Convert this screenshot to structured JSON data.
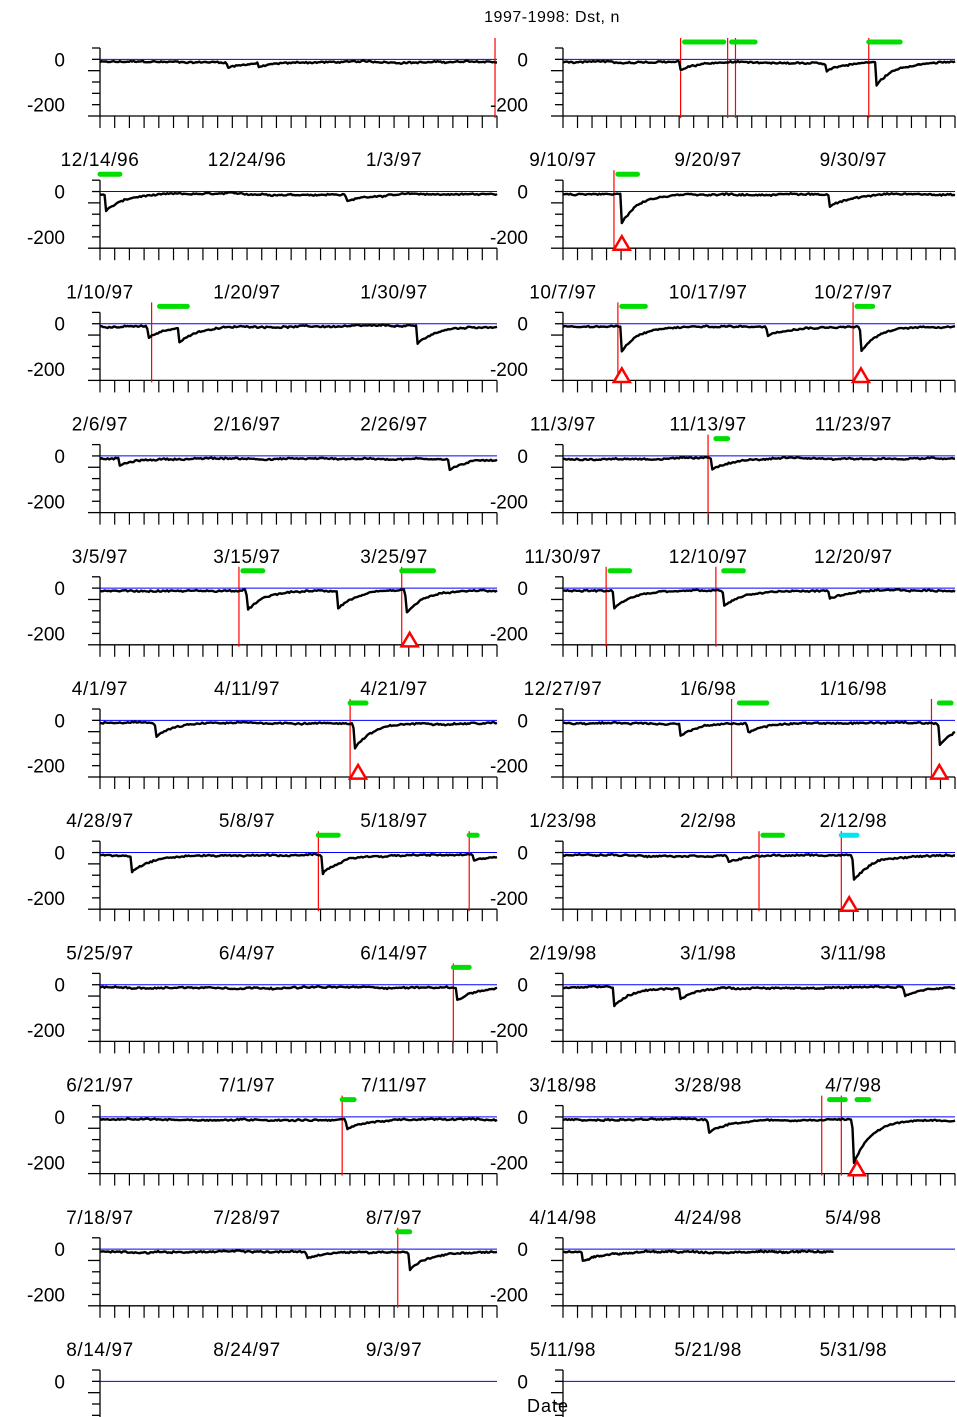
{
  "chart_data": {
    "type": "line",
    "title": "1997-1998: Dst, n",
    "xlabel": "Date",
    "ylabel": "",
    "ylim": [
      -250,
      50
    ],
    "y_ticks": [
      "0",
      "-200"
    ],
    "colors": {
      "dst_line": "#000000",
      "zero_line": "#0000ff",
      "event_marker": "#ff0000",
      "interval_bar": "#00dd00",
      "interval_bar_alt": "#00e5ee",
      "triangle": "#ff0000"
    },
    "panels": [
      {
        "column": "left",
        "row": 0,
        "date_labels": [],
        "dst_min": -25,
        "dips": [
          {
            "pos": 0.32,
            "depth": -25
          },
          {
            "pos": 0.4,
            "depth": -18
          }
        ],
        "red_lines": [
          0.995
        ],
        "green_bars": [],
        "cyan_bars": [],
        "triangles": []
      },
      {
        "column": "left",
        "row": 1,
        "date_labels": [
          "12/14/96",
          "12/24/96",
          "1/3/97"
        ],
        "dst_min": -75,
        "dips": [
          {
            "pos": 0.015,
            "depth": -75
          },
          {
            "pos": 0.62,
            "depth": -35
          }
        ],
        "red_lines": [],
        "green_bars": [
          [
            0.0,
            0.05
          ]
        ],
        "cyan_bars": [],
        "triangles": []
      },
      {
        "column": "left",
        "row": 2,
        "date_labels": [
          "1/10/97",
          "1/20/97",
          "1/30/97"
        ],
        "dst_min": -80,
        "dips": [
          {
            "pos": 0.12,
            "depth": -55
          },
          {
            "pos": 0.2,
            "depth": -60
          },
          {
            "pos": 0.8,
            "depth": -80
          }
        ],
        "red_lines": [
          0.13
        ],
        "green_bars": [
          [
            0.15,
            0.22
          ]
        ],
        "cyan_bars": [],
        "triangles": []
      },
      {
        "column": "left",
        "row": 3,
        "date_labels": [
          "2/6/97",
          "2/16/97",
          "2/26/97"
        ],
        "dst_min": -50,
        "dips": [
          {
            "pos": 0.05,
            "depth": -30
          },
          {
            "pos": 0.88,
            "depth": -50
          }
        ],
        "red_lines": [],
        "green_bars": [],
        "cyan_bars": [],
        "triangles": []
      },
      {
        "column": "left",
        "row": 4,
        "date_labels": [
          "3/5/97",
          "3/15/97",
          "3/25/97"
        ],
        "dst_min": -105,
        "dips": [
          {
            "pos": 0.37,
            "depth": -90
          },
          {
            "pos": 0.6,
            "depth": -75
          },
          {
            "pos": 0.77,
            "depth": -105
          }
        ],
        "red_lines": [
          0.35,
          0.76
        ],
        "green_bars": [
          [
            0.36,
            0.41
          ],
          [
            0.76,
            0.84
          ]
        ],
        "cyan_bars": [],
        "triangles": [
          0.78
        ]
      },
      {
        "column": "left",
        "row": 5,
        "date_labels": [
          "4/1/97",
          "4/11/97",
          "4/21/97"
        ],
        "dst_min": -115,
        "dips": [
          {
            "pos": 0.14,
            "depth": -60
          },
          {
            "pos": 0.64,
            "depth": -115
          }
        ],
        "red_lines": [
          0.63
        ],
        "green_bars": [
          [
            0.63,
            0.67
          ]
        ],
        "cyan_bars": [],
        "triangles": [
          0.65
        ]
      },
      {
        "column": "left",
        "row": 6,
        "date_labels": [
          "4/28/97",
          "5/8/97",
          "5/18/97"
        ],
        "dst_min": -85,
        "dips": [
          {
            "pos": 0.08,
            "depth": -70
          },
          {
            "pos": 0.56,
            "depth": -85
          },
          {
            "pos": 0.94,
            "depth": -30
          }
        ],
        "red_lines": [
          0.55,
          0.93
        ],
        "green_bars": [
          [
            0.55,
            0.6
          ],
          [
            0.93,
            0.95
          ]
        ],
        "cyan_bars": [],
        "triangles": []
      },
      {
        "column": "left",
        "row": 7,
        "date_labels": [
          "5/25/97",
          "6/4/97",
          "6/14/97"
        ],
        "dst_min": -55,
        "dips": [
          {
            "pos": 0.9,
            "depth": -55
          }
        ],
        "red_lines": [
          0.89
        ],
        "green_bars": [
          [
            0.89,
            0.93
          ]
        ],
        "cyan_bars": [],
        "triangles": []
      },
      {
        "column": "left",
        "row": 8,
        "date_labels": [
          "6/21/97",
          "7/1/97",
          "7/11/97"
        ],
        "dst_min": -45,
        "dips": [
          {
            "pos": 0.62,
            "depth": -45
          }
        ],
        "red_lines": [
          0.61
        ],
        "green_bars": [
          [
            0.61,
            0.64
          ]
        ],
        "cyan_bars": [],
        "triangles": []
      },
      {
        "column": "left",
        "row": 9,
        "date_labels": [
          "7/18/97",
          "7/28/97",
          "8/7/97"
        ],
        "dst_min": -80,
        "dips": [
          {
            "pos": 0.52,
            "depth": -30
          },
          {
            "pos": 0.78,
            "depth": -80
          }
        ],
        "red_lines": [
          0.75
        ],
        "green_bars": [
          [
            0.75,
            0.78
          ]
        ],
        "cyan_bars": [],
        "triangles": []
      },
      {
        "column": "left",
        "row": 10,
        "date_labels": [
          "8/14/97",
          "8/24/97",
          "9/3/97"
        ],
        "dst_min": null,
        "dips": [],
        "red_lines": [],
        "green_bars": [],
        "cyan_bars": [],
        "triangles": []
      },
      {
        "column": "right",
        "row": 0,
        "date_labels": [],
        "dst_min": -100,
        "dips": [
          {
            "pos": 0.3,
            "depth": -40
          },
          {
            "pos": 0.67,
            "depth": -35
          },
          {
            "pos": 0.8,
            "depth": -100
          }
        ],
        "red_lines": [
          0.3,
          0.42,
          0.44,
          0.78
        ],
        "green_bars": [
          [
            0.31,
            0.41
          ],
          [
            0.43,
            0.49
          ],
          [
            0.78,
            0.86
          ]
        ],
        "cyan_bars": [],
        "triangles": []
      },
      {
        "column": "right",
        "row": 1,
        "date_labels": [
          "9/10/97",
          "9/20/97",
          "9/30/97"
        ],
        "dst_min": -130,
        "dips": [
          {
            "pos": 0.15,
            "depth": -130
          },
          {
            "pos": 0.68,
            "depth": -55
          }
        ],
        "red_lines": [
          0.13
        ],
        "green_bars": [
          [
            0.14,
            0.19
          ]
        ],
        "cyan_bars": [],
        "triangles": [
          0.15
        ]
      },
      {
        "column": "right",
        "row": 2,
        "date_labels": [
          "10/7/97",
          "10/17/97",
          "10/27/97"
        ],
        "dst_min": -110,
        "dips": [
          {
            "pos": 0.15,
            "depth": -110
          },
          {
            "pos": 0.52,
            "depth": -40
          },
          {
            "pos": 0.76,
            "depth": -110
          }
        ],
        "red_lines": [
          0.14,
          0.74
        ],
        "green_bars": [
          [
            0.15,
            0.21
          ],
          [
            0.75,
            0.79
          ]
        ],
        "cyan_bars": [],
        "triangles": [
          0.15,
          0.76
        ]
      },
      {
        "column": "right",
        "row": 3,
        "date_labels": [
          "11/3/97",
          "11/13/97",
          "11/23/97"
        ],
        "dst_min": -50,
        "dips": [
          {
            "pos": 0.38,
            "depth": -50
          }
        ],
        "red_lines": [
          0.37
        ],
        "green_bars": [
          [
            0.39,
            0.42
          ]
        ],
        "cyan_bars": [],
        "triangles": []
      },
      {
        "column": "right",
        "row": 4,
        "date_labels": [
          "11/30/97",
          "12/10/97",
          "12/20/97"
        ],
        "dst_min": -80,
        "dips": [
          {
            "pos": 0.13,
            "depth": -80
          },
          {
            "pos": 0.41,
            "depth": -70
          },
          {
            "pos": 0.68,
            "depth": -35
          }
        ],
        "red_lines": [
          0.11,
          0.39
        ],
        "green_bars": [
          [
            0.12,
            0.17
          ],
          [
            0.41,
            0.46
          ]
        ],
        "cyan_bars": [],
        "triangles": []
      },
      {
        "column": "right",
        "row": 5,
        "date_labels": [
          "12/27/97",
          "1/6/98",
          "1/16/98"
        ],
        "dst_min": -95,
        "dips": [
          {
            "pos": 0.3,
            "depth": -55
          },
          {
            "pos": 0.47,
            "depth": -40
          },
          {
            "pos": 0.96,
            "depth": -95
          }
        ],
        "red_lines": [
          0.43,
          0.94
        ],
        "green_bars": [
          [
            0.45,
            0.52
          ],
          [
            0.96,
            0.99
          ]
        ],
        "cyan_bars": [],
        "triangles": [
          0.96
        ]
      },
      {
        "column": "right",
        "row": 6,
        "date_labels": [
          "1/23/98",
          "2/2/98",
          "2/12/98"
        ],
        "dst_min": -115,
        "dips": [
          {
            "pos": 0.42,
            "depth": -30
          },
          {
            "pos": 0.74,
            "depth": -115
          }
        ],
        "red_lines": [
          0.5,
          0.71
        ],
        "green_bars": [
          [
            0.51,
            0.56
          ]
        ],
        "cyan_bars": [
          [
            0.71,
            0.75
          ]
        ],
        "triangles": [
          0.73
        ]
      },
      {
        "column": "right",
        "row": 7,
        "date_labels": [
          "2/19/98",
          "3/1/98",
          "3/11/98"
        ],
        "dst_min": -85,
        "dips": [
          {
            "pos": 0.13,
            "depth": -85
          },
          {
            "pos": 0.3,
            "depth": -50
          },
          {
            "pos": 0.87,
            "depth": -40
          }
        ],
        "red_lines": [],
        "green_bars": [],
        "cyan_bars": [],
        "triangles": []
      },
      {
        "column": "right",
        "row": 8,
        "date_labels": [
          "3/18/98",
          "3/28/98",
          "4/7/98"
        ],
        "dst_min": -200,
        "dips": [
          {
            "pos": 0.37,
            "depth": -60
          },
          {
            "pos": 0.74,
            "depth": -200
          }
        ],
        "red_lines": [
          0.66,
          0.71
        ],
        "green_bars": [
          [
            0.68,
            0.72
          ],
          [
            0.75,
            0.78
          ]
        ],
        "cyan_bars": [],
        "triangles": [
          0.75
        ]
      },
      {
        "column": "right",
        "row": 9,
        "date_labels": [
          "4/14/98",
          "4/24/98",
          "5/4/98"
        ],
        "dst_min": -40,
        "dips": [
          {
            "pos": 0.05,
            "depth": -40
          }
        ],
        "red_lines": [],
        "green_bars": [],
        "cyan_bars": [],
        "triangles": [],
        "data_end": 0.69
      },
      {
        "column": "right",
        "row": 10,
        "date_labels": [
          "5/11/98",
          "5/21/98",
          "5/31/98"
        ],
        "dst_min": null,
        "dips": [],
        "red_lines": [],
        "green_bars": [],
        "cyan_bars": [],
        "triangles": []
      }
    ]
  }
}
